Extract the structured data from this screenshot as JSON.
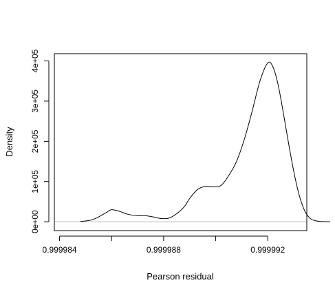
{
  "chart_data": {
    "type": "line",
    "title": "",
    "xlabel": "Pearson residual",
    "ylabel": "Density",
    "xlim": [
      0.9999838,
      0.9999935
    ],
    "ylim": [
      -22000,
      418000
    ],
    "x_ticks": [
      {
        "value": 0.999984,
        "label": "0.999984"
      },
      {
        "value": 0.999988,
        "label": "0.999988"
      },
      {
        "value": 0.999992,
        "label": "0.999992"
      }
    ],
    "x_minor_ticks": [
      0.999986,
      0.99999
    ],
    "y_ticks": [
      {
        "value": 0,
        "label": "0e+00"
      },
      {
        "value": 100000,
        "label": "1e+05"
      },
      {
        "value": 200000,
        "label": "2e+05"
      },
      {
        "value": 300000,
        "label": "3e+05"
      },
      {
        "value": 400000,
        "label": "4e+05"
      }
    ],
    "baseline": 0,
    "baseline_color": "#bebebe",
    "line_color": "#000000",
    "series": [
      {
        "x": [
          0.9999848,
          0.9999852,
          0.9999855,
          0.9999858,
          0.999986,
          0.9999863,
          0.9999866,
          0.999987,
          0.9999873,
          0.9999876,
          0.9999879,
          0.9999882,
          0.9999885,
          0.9999888,
          0.999989,
          0.9999893,
          0.9999896,
          0.9999899,
          0.9999902,
          0.9999905,
          0.9999908,
          0.9999911,
          0.9999914,
          0.9999917,
          0.999992,
          0.9999922,
          0.9999924,
          0.9999926,
          0.9999928,
          0.999993,
          0.9999932,
          0.9999934,
          0.9999936,
          0.9999938,
          0.999994,
          0.9999942,
          0.9999944
        ],
        "y": [
          500,
          4000,
          12000,
          23000,
          30000,
          26000,
          19000,
          15000,
          15000,
          12000,
          8000,
          9000,
          20000,
          38000,
          58000,
          80000,
          88000,
          87000,
          90000,
          115000,
          150000,
          205000,
          275000,
          350000,
          395000,
          385000,
          340000,
          270000,
          195000,
          125000,
          68000,
          30000,
          10000,
          3000,
          800,
          200,
          0
        ]
      }
    ]
  }
}
